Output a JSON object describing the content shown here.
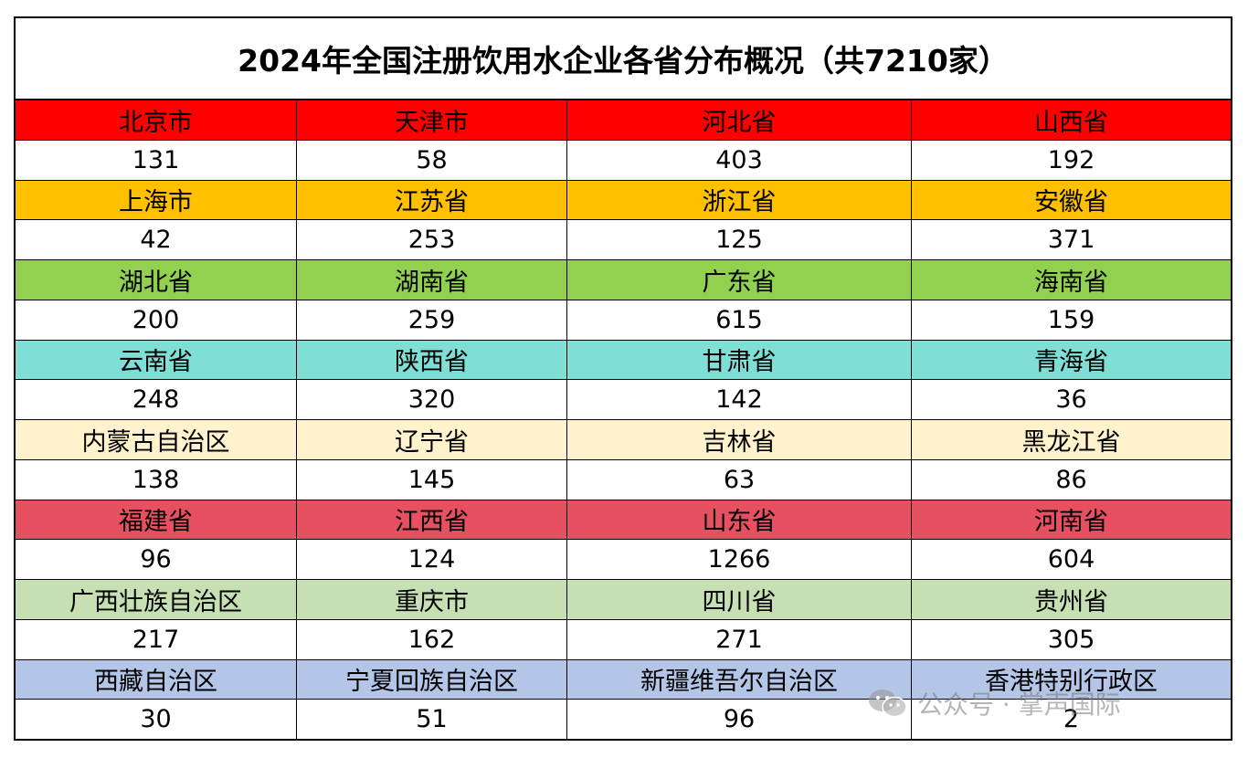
{
  "title": "2024年全国注册饮用水企业各省分布概况（共7210家）",
  "groups": [
    {
      "color": "#ff0000",
      "name_color": "#000000",
      "provinces": [
        "北京市",
        "天津市",
        "河北省",
        "山西省"
      ],
      "values": [
        "131",
        "58",
        "403",
        "192"
      ]
    },
    {
      "color": "#ffc000",
      "name_color": "#000000",
      "provinces": [
        "上海市",
        "江苏省",
        "浙江省",
        "安徽省"
      ],
      "values": [
        "42",
        "253",
        "125",
        "371"
      ]
    },
    {
      "color": "#92d050",
      "name_color": "#000000",
      "provinces": [
        "湖北省",
        "湖南省",
        "广东省",
        "海南省"
      ],
      "values": [
        "200",
        "259",
        "615",
        "159"
      ]
    },
    {
      "color": "#7fded6",
      "name_color": "#000000",
      "provinces": [
        "云南省",
        "陕西省",
        "甘肃省",
        "青海省"
      ],
      "values": [
        "248",
        "320",
        "142",
        "36"
      ]
    },
    {
      "color": "#fff2cc",
      "name_color": "#000000",
      "provinces": [
        "内蒙古自治区",
        "辽宁省",
        "吉林省",
        "黑龙江省"
      ],
      "values": [
        "138",
        "145",
        "63",
        "86"
      ]
    },
    {
      "color": "#e75060",
      "name_color": "#000000",
      "provinces": [
        "福建省",
        "江西省",
        "山东省",
        "河南省"
      ],
      "values": [
        "96",
        "124",
        "1266",
        "604"
      ]
    },
    {
      "color": "#c6e0b4",
      "name_color": "#000000",
      "provinces": [
        "广西壮族自治区",
        "重庆市",
        "四川省",
        "贵州省"
      ],
      "values": [
        "217",
        "162",
        "271",
        "305"
      ]
    },
    {
      "color": "#b4c6e7",
      "name_color": "#000000",
      "provinces": [
        "西藏自治区",
        "宁夏回族自治区",
        "新疆维吾尔自治区",
        "香港特别行政区"
      ],
      "values": [
        "30",
        "51",
        "96",
        "2"
      ]
    }
  ],
  "watermark": {
    "text": "公众号 · 掌声国际",
    "icon": "wechat-icon"
  }
}
